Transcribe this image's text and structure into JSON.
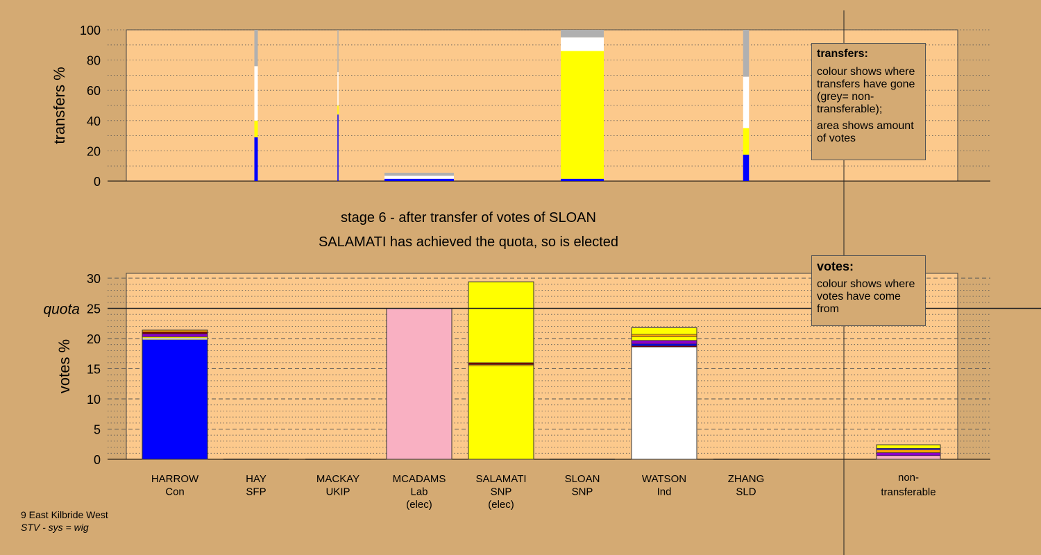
{
  "captions": {
    "stage": "stage 6 - after transfer of votes of SLOAN",
    "result": "SALAMATI has achieved the quota, so is elected"
  },
  "footer": {
    "line1": "9 East Kilbride West",
    "line2": "STV - sys = wig"
  },
  "legends": {
    "transfers": {
      "title": "transfers:",
      "text1": "colour shows where transfers have gone (grey= non-transferable);",
      "text2": "area shows amount of votes"
    },
    "votes": {
      "title": "votes:",
      "text1": "colour shows where votes have come from"
    }
  },
  "colors": {
    "background": "#d4aa73",
    "plot": "#fcc98c",
    "Con": "#0000ff",
    "SFP": "#7a0000",
    "UKIP": "#8a00c8",
    "Lab": "#f9b0c2",
    "SNP": "#ffff00",
    "Ind": "#ffffff",
    "SLD": "#ffa500",
    "nontransferable": "#b0b0b0"
  },
  "candidates": [
    {
      "name": "HARROW",
      "party": "Con",
      "elected": ""
    },
    {
      "name": "HAY",
      "party": "SFP",
      "elected": ""
    },
    {
      "name": "MACKAY",
      "party": "UKIP",
      "elected": ""
    },
    {
      "name": "MCADAMS",
      "party": "Lab",
      "elected": "(elec)"
    },
    {
      "name": "SALAMATI",
      "party": "SNP",
      "elected": "(elec)"
    },
    {
      "name": "SLOAN",
      "party": "SNP",
      "elected": ""
    },
    {
      "name": "WATSON",
      "party": "Ind",
      "elected": ""
    },
    {
      "name": "ZHANG",
      "party": "SLD",
      "elected": ""
    }
  ],
  "nontransferable_label": {
    "line1": "non-",
    "line2": "transferable"
  },
  "chart_data": [
    {
      "type": "bar",
      "stacked": true,
      "ylabel": "transfers %",
      "ylim": [
        0,
        100
      ],
      "yticks": [
        0,
        20,
        40,
        60,
        80,
        100
      ],
      "note": "bar width proportional to amount of votes transferred",
      "bars": [
        {
          "candidate": "HAY",
          "width_rel": 0.05,
          "segments": [
            {
              "party": "Con",
              "value": 29
            },
            {
              "party": "SNP",
              "value": 11
            },
            {
              "party": "Ind",
              "value": 36
            },
            {
              "party": "nontransferable",
              "value": 24
            }
          ]
        },
        {
          "candidate": "MACKAY",
          "width_rel": 0.015,
          "segments": [
            {
              "party": "Con",
              "value": 44
            },
            {
              "party": "SNP",
              "value": 6
            },
            {
              "party": "Ind",
              "value": 22
            },
            {
              "party": "nontransferable",
              "value": 28
            }
          ]
        },
        {
          "candidate": "MCADAMS",
          "width_rel": 1.0,
          "segments": [
            {
              "party": "Con",
              "value": 1.5
            },
            {
              "party": "Ind",
              "value": 2
            },
            {
              "party": "nontransferable",
              "value": 2
            }
          ]
        },
        {
          "candidate": "SLOAN",
          "width_rel": 0.62,
          "segments": [
            {
              "party": "Con",
              "value": 1.5
            },
            {
              "party": "SNP",
              "value": 84.5
            },
            {
              "party": "Ind",
              "value": 9
            },
            {
              "party": "nontransferable",
              "value": 5
            }
          ]
        },
        {
          "candidate": "ZHANG",
          "width_rel": 0.085,
          "segments": [
            {
              "party": "Con",
              "value": 17.5
            },
            {
              "party": "SNP",
              "value": 17.5
            },
            {
              "party": "Ind",
              "value": 34
            },
            {
              "party": "nontransferable",
              "value": 31
            }
          ]
        }
      ]
    },
    {
      "type": "bar",
      "stacked": true,
      "ylabel": "votes %",
      "ylim": [
        0,
        30
      ],
      "yticks": [
        0,
        5,
        10,
        15,
        20,
        25,
        30
      ],
      "quota": 25,
      "quota_label": "quota",
      "bars": [
        {
          "candidate": "HARROW",
          "segments": [
            {
              "party": "Con",
              "value": 19.8
            },
            {
              "party": "Ind",
              "value": 0.3
            },
            {
              "party": "SNP",
              "value": 0.2
            },
            {
              "party": "UKIP",
              "value": 0.5
            },
            {
              "party": "SFP",
              "value": 0.3
            },
            {
              "party": "SLD",
              "value": 0.3
            }
          ]
        },
        {
          "candidate": "HAY",
          "segments": []
        },
        {
          "candidate": "MACKAY",
          "segments": []
        },
        {
          "candidate": "MCADAMS",
          "segments": [
            {
              "party": "Lab",
              "value": 25.0
            }
          ]
        },
        {
          "candidate": "SALAMATI",
          "segments": [
            {
              "party": "SNP",
              "value": 15.5
            },
            {
              "party": "SLD",
              "value": 0.2
            },
            {
              "party": "SFP",
              "value": 0.3
            },
            {
              "party": "SNP",
              "value": 13.4
            }
          ]
        },
        {
          "candidate": "SLOAN",
          "segments": []
        },
        {
          "candidate": "WATSON",
          "segments": [
            {
              "party": "Ind",
              "value": 18.6
            },
            {
              "party": "SFP",
              "value": 0.2
            },
            {
              "party": "Con",
              "value": 0.3
            },
            {
              "party": "UKIP",
              "value": 0.6
            },
            {
              "party": "SNP",
              "value": 0.6
            },
            {
              "party": "SLD",
              "value": 0.4
            },
            {
              "party": "SNP",
              "value": 1.1
            }
          ]
        },
        {
          "candidate": "ZHANG",
          "segments": []
        },
        {
          "candidate": "non-transferable",
          "segments": [
            {
              "party": "Lab",
              "value": 0.6
            },
            {
              "party": "UKIP",
              "value": 0.5
            },
            {
              "party": "SLD",
              "value": 0.5
            },
            {
              "party": "Con",
              "value": 0.2
            },
            {
              "party": "SNP",
              "value": 0.6
            }
          ]
        }
      ]
    }
  ]
}
